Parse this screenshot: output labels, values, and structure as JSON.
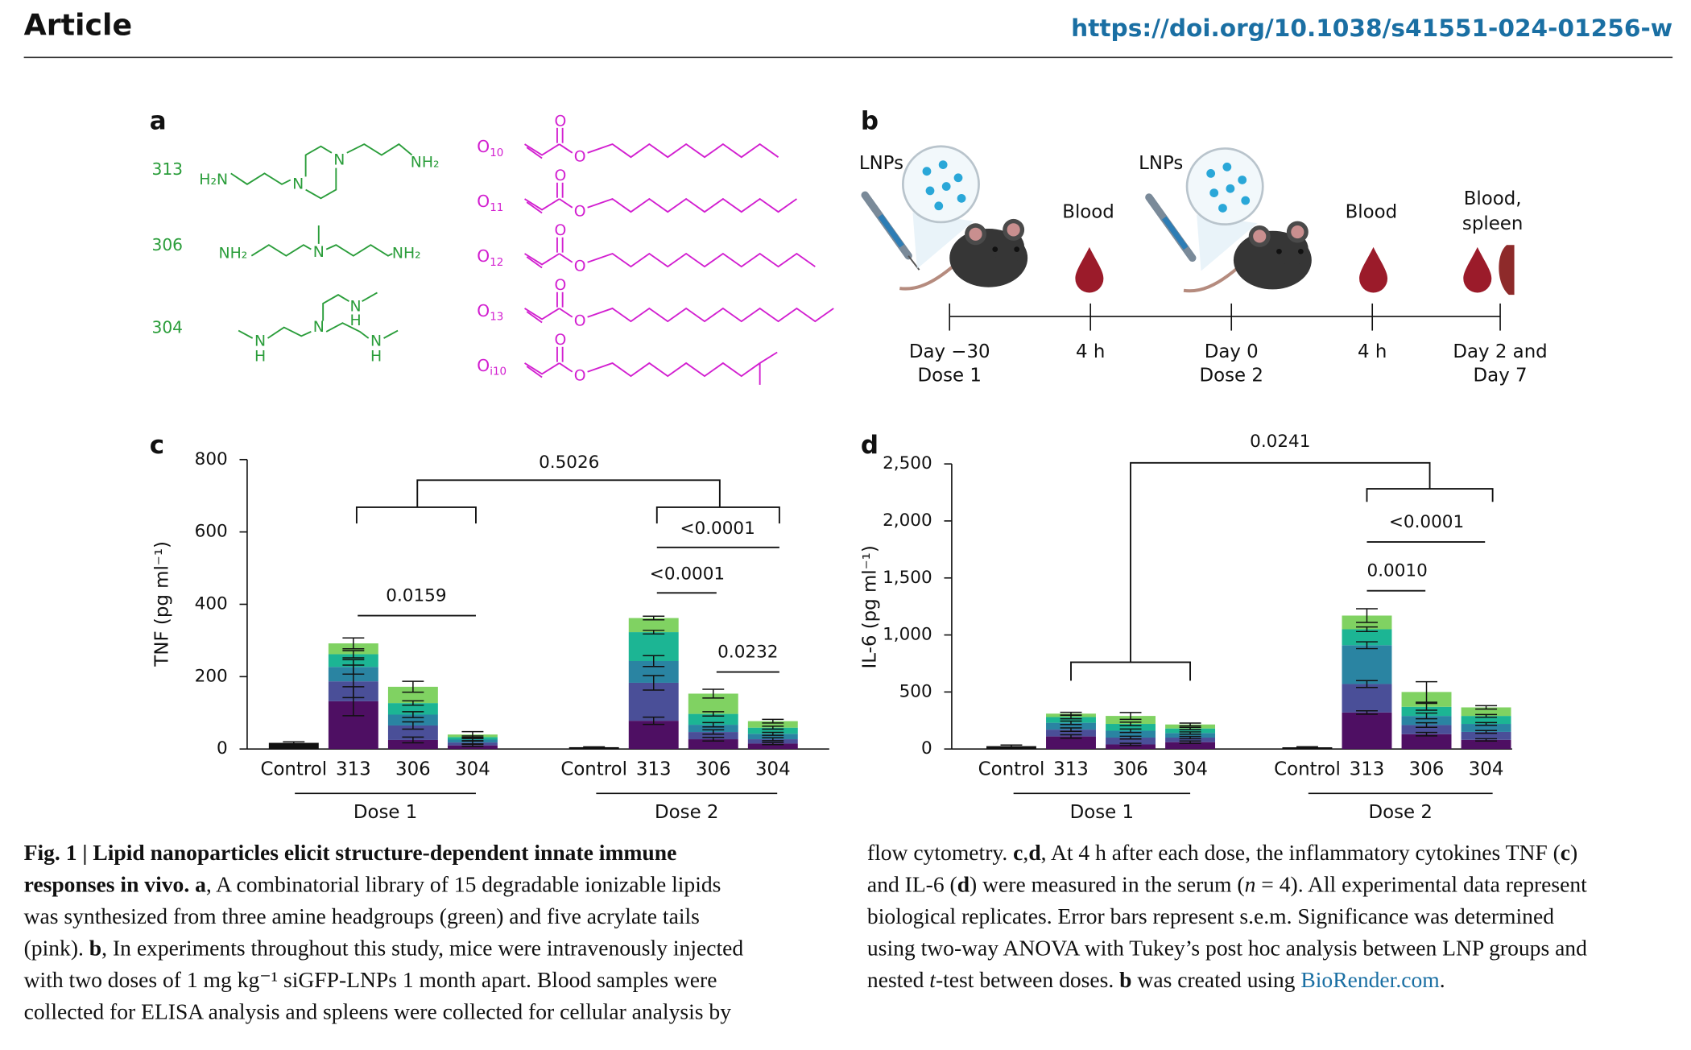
{
  "header": {
    "title": "Article",
    "doi": "https://doi.org/10.1038/s41551-024-01256-w"
  },
  "panel_letters": [
    "a",
    "b",
    "c",
    "d"
  ],
  "panel_a": {
    "amines": [
      {
        "id": "313",
        "atoms": [
          "H₂N",
          "N",
          "N",
          "NH₂"
        ]
      },
      {
        "id": "306",
        "atoms": [
          "NH₂",
          "N",
          "NH₂"
        ]
      },
      {
        "id": "304",
        "atoms": [
          "N",
          "H",
          "N",
          "N",
          "H",
          "N",
          "H"
        ]
      }
    ],
    "tails": [
      {
        "symbol": "O",
        "sub": "10",
        "atoms": [
          "O",
          "O"
        ]
      },
      {
        "symbol": "O",
        "sub": "11",
        "atoms": [
          "O",
          "O"
        ]
      },
      {
        "symbol": "O",
        "sub": "12",
        "atoms": [
          "O",
          "O"
        ]
      },
      {
        "symbol": "O",
        "sub": "13",
        "atoms": [
          "O",
          "O"
        ]
      },
      {
        "symbol": "O",
        "sub": "i10",
        "atoms": [
          "O",
          "O"
        ]
      }
    ]
  },
  "panel_b": {
    "top_labels": [
      {
        "lines": [
          "LNPs"
        ]
      },
      {
        "lines": [
          "Blood"
        ]
      },
      {
        "lines": [
          "LNPs"
        ]
      },
      {
        "lines": [
          "Blood"
        ]
      },
      {
        "lines": [
          "Blood,",
          "spleen"
        ]
      }
    ],
    "timeline": [
      {
        "lines": [
          "Day −30",
          "Dose 1"
        ]
      },
      {
        "lines": [
          "4 h"
        ]
      },
      {
        "lines": [
          "Day 0",
          "Dose 2"
        ]
      },
      {
        "lines": [
          "4 h"
        ]
      },
      {
        "lines": [
          "Day 2 and",
          "Day 7"
        ]
      }
    ]
  },
  "chart_data": [
    {
      "type": "stacked_bar",
      "ylabel": "TNF (pg ml⁻¹)",
      "categories": [
        "Control",
        "313",
        "306",
        "304",
        "Control",
        "313",
        "306",
        "304"
      ],
      "groups": [
        "Dose 1",
        "Dose 2"
      ],
      "ylim": [
        0,
        800
      ],
      "yticks": [
        0,
        200,
        400,
        600,
        800
      ],
      "series": [
        {
          "color": "#111111",
          "values": [
            17,
            null,
            null,
            null,
            5,
            null,
            null,
            null
          ],
          "errors": [
            3,
            null,
            null,
            null,
            1,
            null,
            null,
            null
          ]
        },
        {
          "color": "#4e0f63",
          "values": [
            null,
            132,
            25,
            10,
            null,
            78,
            27,
            15
          ],
          "errors": [
            null,
            40,
            8,
            3,
            null,
            10,
            5,
            3
          ]
        },
        {
          "color": "#4a4f98",
          "values": [
            null,
            55,
            40,
            8,
            null,
            105,
            20,
            12
          ],
          "errors": [
            null,
            45,
            10,
            4,
            null,
            20,
            6,
            4
          ]
        },
        {
          "color": "#2a84a2",
          "values": [
            null,
            40,
            30,
            8,
            null,
            60,
            20,
            15
          ],
          "errors": [
            null,
            20,
            8,
            3,
            null,
            15,
            6,
            4
          ]
        },
        {
          "color": "#1cb594",
          "values": [
            null,
            35,
            32,
            7,
            null,
            80,
            30,
            17
          ],
          "errors": [
            null,
            10,
            6,
            3,
            null,
            5,
            6,
            4
          ]
        },
        {
          "color": "#80d262",
          "values": [
            null,
            30,
            45,
            7,
            null,
            39,
            56,
            18
          ],
          "errors": [
            null,
            15,
            15,
            8,
            null,
            5,
            12,
            5
          ]
        }
      ],
      "annotations": [
        {
          "label": "0.5026"
        },
        {
          "label": "0.0159"
        },
        {
          "label": "<0.0001"
        },
        {
          "label": "<0.0001"
        },
        {
          "label": "0.0232"
        }
      ]
    },
    {
      "type": "stacked_bar",
      "ylabel": "IL-6 (pg ml⁻¹)",
      "categories": [
        "Control",
        "313",
        "306",
        "304",
        "Control",
        "313",
        "306",
        "304"
      ],
      "groups": [
        "Dose 1",
        "Dose 2"
      ],
      "ylim": [
        0,
        2500
      ],
      "yticks": [
        0,
        500,
        {
          "value": 1000,
          "label": "1,000"
        },
        {
          "value": 1500,
          "label": "1,500"
        },
        {
          "value": 2000,
          "label": "2,000"
        },
        {
          "value": 2500,
          "label": "2,500"
        }
      ],
      "series": [
        {
          "color": "#111111",
          "values": [
            25,
            null,
            null,
            null,
            15,
            null,
            null,
            null
          ],
          "errors": [
            10,
            null,
            null,
            null,
            5,
            null,
            null,
            null
          ]
        },
        {
          "color": "#4e0f63",
          "values": [
            null,
            110,
            40,
            60,
            null,
            320,
            130,
            80
          ],
          "errors": [
            null,
            15,
            10,
            10,
            null,
            15,
            15,
            10
          ]
        },
        {
          "color": "#4a4f98",
          "values": [
            null,
            60,
            60,
            40,
            null,
            250,
            80,
            70
          ],
          "errors": [
            null,
            15,
            12,
            10,
            null,
            30,
            20,
            12
          ]
        },
        {
          "color": "#2a84a2",
          "values": [
            null,
            60,
            60,
            40,
            null,
            340,
            80,
            70
          ],
          "errors": [
            null,
            15,
            15,
            10,
            null,
            30,
            25,
            12
          ]
        },
        {
          "color": "#1cb594",
          "values": [
            null,
            50,
            60,
            40,
            null,
            140,
            80,
            70
          ],
          "errors": [
            null,
            15,
            15,
            10,
            null,
            20,
            30,
            12
          ]
        },
        {
          "color": "#80d262",
          "values": [
            null,
            30,
            70,
            35,
            null,
            120,
            130,
            75
          ],
          "errors": [
            null,
            12,
            30,
            12,
            null,
            60,
            90,
            15
          ]
        }
      ],
      "annotations": [
        {
          "label": "0.0241"
        },
        {
          "label": "<0.0001"
        },
        {
          "label": "0.0010"
        }
      ]
    }
  ],
  "caption": {
    "left": [
      [
        {
          "text": "Fig. 1 | Lipid nanoparticles elicit structure-dependent innate immune",
          "style": "bold"
        }
      ],
      [
        {
          "text": "responses in vivo. a",
          "style": "bold"
        },
        {
          "text": ", A combinatorial library of 15 degradable ionizable lipids"
        }
      ],
      [
        {
          "text": "was synthesized from three amine headgroups (green) and five acrylate tails"
        }
      ],
      [
        {
          "text": "(pink). "
        },
        {
          "text": "b",
          "style": "bold"
        },
        {
          "text": ", In experiments throughout this study, mice were intravenously injected"
        }
      ],
      [
        {
          "text": "with two doses of 1 mg kg⁻¹ siGFP-LNPs 1 month apart. Blood samples were"
        }
      ],
      [
        {
          "text": "collected for ELISA analysis and spleens were collected for cellular analysis by"
        }
      ]
    ],
    "right": [
      [
        {
          "text": "flow cytometry. "
        },
        {
          "text": "c",
          "style": "bold"
        },
        {
          "text": ","
        },
        {
          "text": "d",
          "style": "bold"
        },
        {
          "text": ", At 4 h after each dose, the inflammatory cytokines TNF ("
        },
        {
          "text": "c",
          "style": "bold"
        },
        {
          "text": ")"
        }
      ],
      [
        {
          "text": "and IL-6 ("
        },
        {
          "text": "d",
          "style": "bold"
        },
        {
          "text": ") were measured in the serum ("
        },
        {
          "text": "n",
          "style": "italic"
        },
        {
          "text": " = 4). All experimental data represent"
        }
      ],
      [
        {
          "text": "biological replicates. Error bars represent s.e.m. Significance was determined"
        }
      ],
      [
        {
          "text": "using two-way ANOVA with Tukey’s post hoc analysis between LNP groups and"
        }
      ],
      [
        {
          "text": "nested "
        },
        {
          "text": "t",
          "style": "italic"
        },
        {
          "text": "-test between doses. "
        },
        {
          "text": "b",
          "style": "bold"
        },
        {
          "text": " was created using "
        },
        {
          "text": "BioRender.com",
          "style": "link"
        },
        {
          "text": "."
        }
      ]
    ]
  }
}
